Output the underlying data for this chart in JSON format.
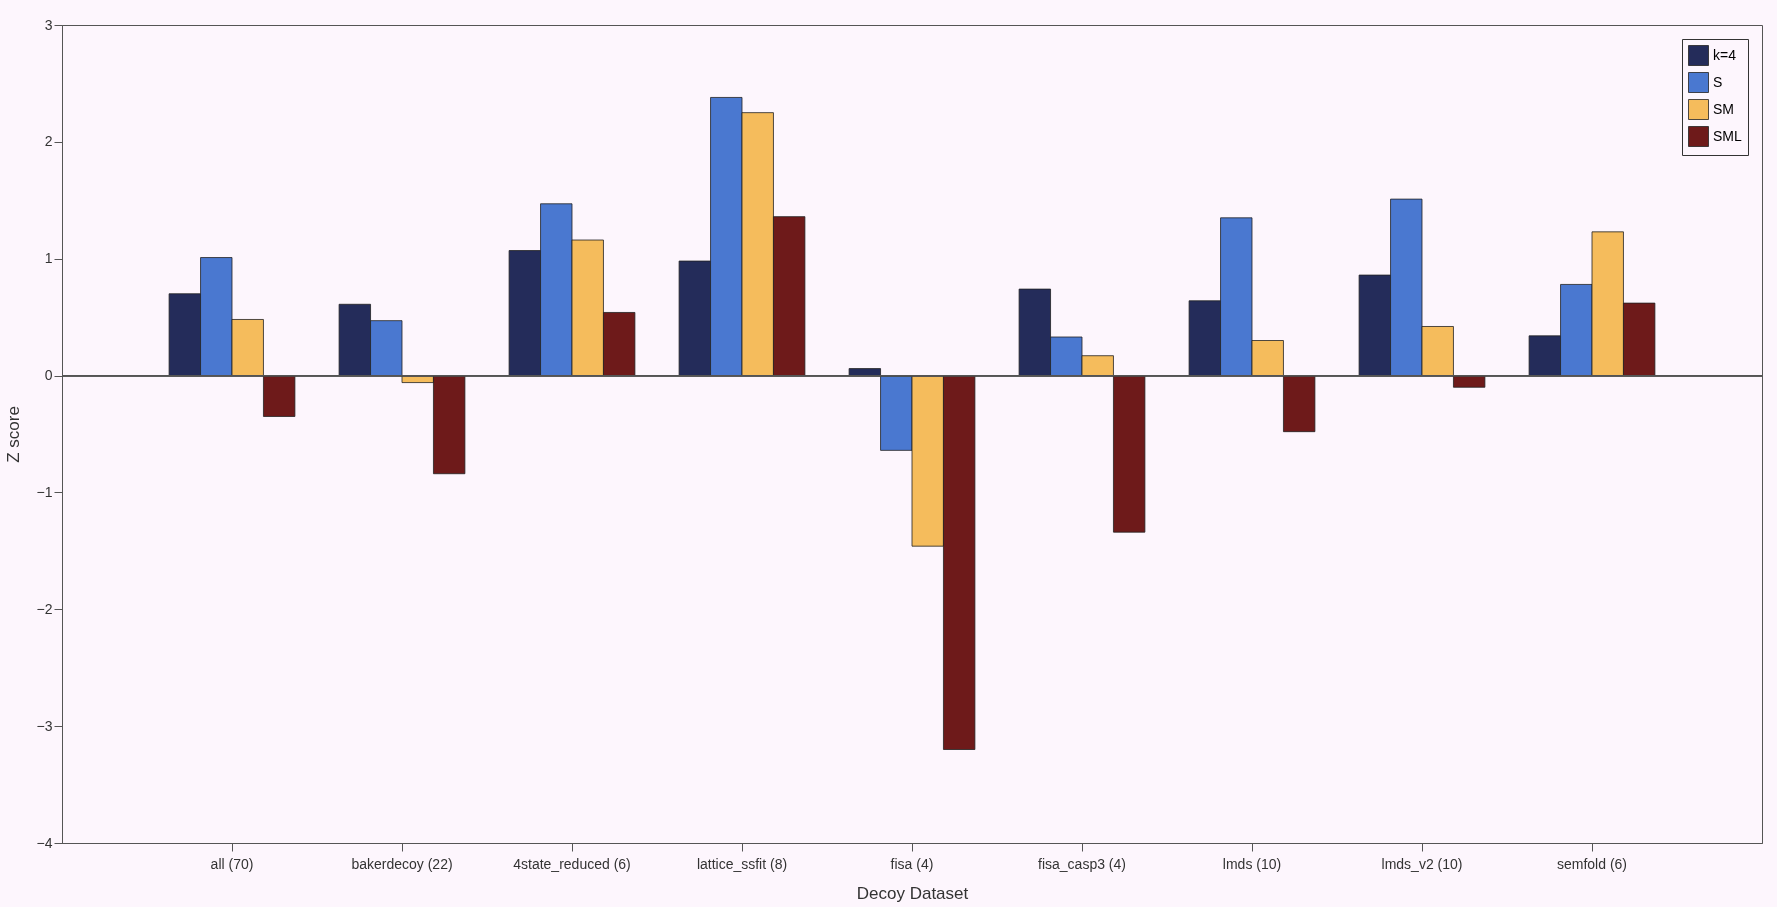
{
  "chart_data": {
    "type": "bar",
    "xlabel": "Decoy Dataset",
    "ylabel": "Z score",
    "categories": [
      "all (70)",
      "bakerdecoy (22)",
      "4state_reduced (6)",
      "lattice_ssfit (8)",
      "fisa (4)",
      "fisa_casp3 (4)",
      "lmds (10)",
      "lmds_v2 (10)",
      "semfold (6)"
    ],
    "series": [
      {
        "name": "k=4",
        "color": "#242c5a",
        "values": [
          0.7,
          0.61,
          1.07,
          0.98,
          0.06,
          0.74,
          0.64,
          0.86,
          0.34
        ]
      },
      {
        "name": "S",
        "color": "#4a78d0",
        "values": [
          1.01,
          0.47,
          1.47,
          2.38,
          -0.64,
          0.33,
          1.35,
          1.51,
          0.78
        ]
      },
      {
        "name": "SM",
        "color": "#f5bc5c",
        "values": [
          0.48,
          -0.06,
          1.16,
          2.25,
          -1.46,
          0.17,
          0.3,
          0.42,
          1.23
        ]
      },
      {
        "name": "SML",
        "color": "#6e1a1a",
        "values": [
          -0.35,
          -0.84,
          0.54,
          1.36,
          -3.2,
          -1.34,
          -0.48,
          -0.1,
          0.62
        ]
      }
    ],
    "ylim": [
      -4,
      3
    ],
    "yticks": [
      -4,
      -3,
      -2,
      -1,
      0,
      1,
      2,
      3
    ],
    "legend": "top right"
  }
}
